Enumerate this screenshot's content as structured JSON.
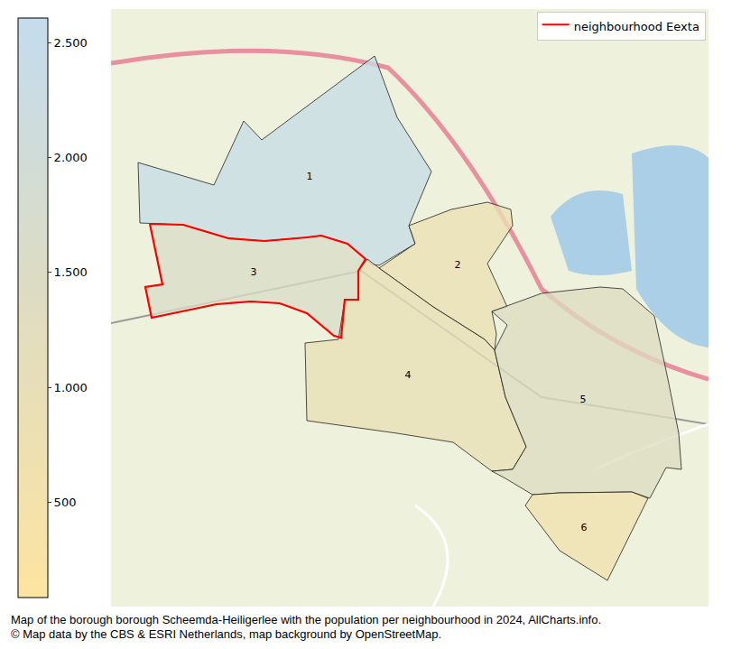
{
  "chart_data": {
    "type": "choropleth_map",
    "caption": [
      "Map of the borough borough Scheemda-Heiligerlee with the population per neighbourhood in 2024, AllCharts.info.",
      "© Map data by the CBS & ESRI Netherlands, map background by OpenStreetMap."
    ],
    "legend": "upper right",
    "highlight": {
      "name": "neighbourhood Eexta",
      "label": "3",
      "color": "#ff0000"
    },
    "colorbar": {
      "range": [
        85,
        2607
      ],
      "ticks": [
        500,
        {
          "value": 1000,
          "label": "1.000"
        },
        {
          "value": 1500,
          "label": "1.500"
        },
        {
          "value": 2000,
          "label": "2.000"
        },
        {
          "value": 2500,
          "label": "2.500"
        }
      ]
    },
    "map_extent": {
      "x": [
        123,
        785
      ],
      "y": [
        10,
        672
      ]
    },
    "neighbourhoods": [
      {
        "label": "1",
        "population": 2400,
        "label_at": [
          343,
          196
        ],
        "polygon": [
          [
            153,
            180
          ],
          [
            237,
            205
          ],
          [
            258,
            160
          ],
          [
            270,
            134
          ],
          [
            290,
            155
          ],
          [
            415,
            62
          ],
          [
            440,
            130
          ],
          [
            478,
            190
          ],
          [
            453,
            250
          ],
          [
            460,
            270
          ],
          [
            420,
            294
          ],
          [
            412,
            293
          ],
          [
            405,
            287
          ],
          [
            385,
            270
          ],
          [
            356,
            261
          ],
          [
            340,
            263
          ],
          [
            293,
            267
          ],
          [
            253,
            264
          ],
          [
            203,
            249
          ],
          [
            166,
            248
          ],
          [
            155,
            247
          ]
        ]
      },
      {
        "label": "2",
        "population": 850,
        "label_at": [
          507,
          294
        ],
        "polygon": [
          [
            420,
            297
          ],
          [
            460,
            270
          ],
          [
            453,
            250
          ],
          [
            500,
            232
          ],
          [
            540,
            224
          ],
          [
            566,
            232
          ],
          [
            568,
            250
          ],
          [
            540,
            292
          ],
          [
            562,
            340
          ],
          [
            545,
            345
          ],
          [
            550,
            370
          ],
          [
            548,
            388
          ],
          [
            537,
            376
          ],
          [
            480,
            340
          ]
        ]
      },
      {
        "label": "3",
        "population": 1550,
        "label_at": [
          281,
          302
        ],
        "polygon": [
          [
            166,
            248
          ],
          [
            203,
            249
          ],
          [
            253,
            264
          ],
          [
            293,
            267
          ],
          [
            340,
            263
          ],
          [
            356,
            261
          ],
          [
            385,
            270
          ],
          [
            405,
            287
          ],
          [
            397,
            300
          ],
          [
            397,
            332
          ],
          [
            382,
            332
          ],
          [
            378,
            374
          ],
          [
            370,
            372
          ],
          [
            340,
            347
          ],
          [
            310,
            336
          ],
          [
            278,
            334
          ],
          [
            240,
            337
          ],
          [
            168,
            352
          ],
          [
            161,
            318
          ],
          [
            180,
            315
          ]
        ]
      },
      {
        "label": "4",
        "population": 950,
        "label_at": [
          452,
          416
        ],
        "polygon": [
          [
            338,
            380
          ],
          [
            375,
            376
          ],
          [
            382,
            332
          ],
          [
            397,
            332
          ],
          [
            397,
            300
          ],
          [
            407,
            287
          ],
          [
            420,
            297
          ],
          [
            480,
            340
          ],
          [
            537,
            376
          ],
          [
            548,
            388
          ],
          [
            560,
            440
          ],
          [
            583,
            495
          ],
          [
            568,
            520
          ],
          [
            545,
            522
          ],
          [
            502,
            490
          ],
          [
            440,
            480
          ],
          [
            340,
            466
          ]
        ]
      },
      {
        "label": "5",
        "population": 1400,
        "label_at": [
          646,
          443
        ],
        "polygon": [
          [
            545,
            345
          ],
          [
            600,
            325
          ],
          [
            665,
            318
          ],
          [
            690,
            320
          ],
          [
            725,
            350
          ],
          [
            740,
            420
          ],
          [
            752,
            480
          ],
          [
            755,
            520
          ],
          [
            738,
            518
          ],
          [
            720,
            552
          ],
          [
            700,
            545
          ],
          [
            620,
            546
          ],
          [
            590,
            548
          ],
          [
            560,
            530
          ],
          [
            545,
            522
          ],
          [
            568,
            520
          ],
          [
            583,
            495
          ],
          [
            560,
            440
          ],
          [
            548,
            388
          ],
          [
            562,
            360
          ]
        ]
      },
      {
        "label": "6",
        "population": 650,
        "label_at": [
          647,
          585
        ],
        "polygon": [
          [
            590,
            548
          ],
          [
            620,
            546
          ],
          [
            700,
            545
          ],
          [
            718,
            552
          ],
          [
            673,
            643
          ],
          [
            620,
            610
          ],
          [
            582,
            560
          ]
        ]
      }
    ]
  }
}
